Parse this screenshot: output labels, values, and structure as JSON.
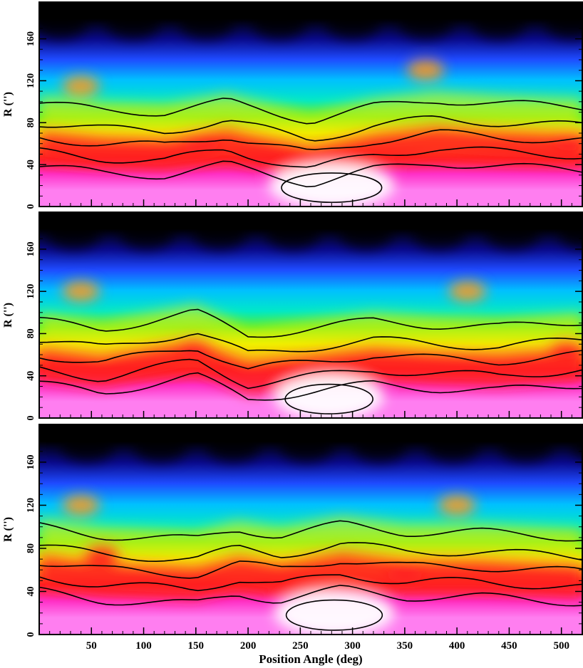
{
  "chart_data": [
    {
      "type": "heatmap",
      "panel": "top",
      "ylabel": "R ('')",
      "xlim": [
        0,
        520
      ],
      "ylim": [
        0,
        195
      ],
      "yticks": [
        "0",
        "40",
        "80",
        "120",
        "160"
      ],
      "show_xticklabels": false,
      "colormap": [
        "#000000",
        "#0a0a8a",
        "#1e4bff",
        "#00c0ff",
        "#00e8c8",
        "#3cf03c",
        "#f0f000",
        "#ff9a14",
        "#ff2020",
        "#ff30c8",
        "#ff7ef0",
        "#ffffff"
      ],
      "features": {
        "arm_band": [
          [
            0,
            58
          ],
          [
            60,
            52
          ],
          [
            120,
            50
          ],
          [
            180,
            60
          ],
          [
            200,
            55
          ],
          [
            260,
            42
          ],
          [
            320,
            55
          ],
          [
            380,
            62
          ],
          [
            440,
            58
          ],
          [
            520,
            55
          ]
        ],
        "white_core_pa": [
          220,
          340
        ],
        "bright_knots": [
          [
            155,
            60
          ],
          [
            510,
            62
          ],
          [
            40,
            115
          ],
          [
            370,
            130
          ]
        ]
      }
    },
    {
      "type": "heatmap",
      "panel": "middle",
      "ylabel": "R ('')",
      "xlim": [
        0,
        520
      ],
      "ylim": [
        0,
        195
      ],
      "yticks": [
        "0",
        "40",
        "80",
        "120",
        "160"
      ],
      "show_xticklabels": false,
      "features": {
        "arm_band": [
          [
            0,
            52
          ],
          [
            60,
            44
          ],
          [
            150,
            60
          ],
          [
            200,
            38
          ],
          [
            260,
            45
          ],
          [
            320,
            52
          ],
          [
            380,
            48
          ],
          [
            440,
            46
          ],
          [
            520,
            52
          ]
        ],
        "white_core_pa": [
          225,
          330
        ],
        "bright_knots": [
          [
            150,
            65
          ],
          [
            505,
            65
          ],
          [
            40,
            120
          ],
          [
            410,
            120
          ]
        ]
      }
    },
    {
      "type": "heatmap",
      "panel": "bottom",
      "ylabel": "R ('')",
      "xlabel": "Position Angle (deg)",
      "xlim": [
        0,
        520
      ],
      "ylim": [
        0,
        195
      ],
      "xticks": [
        "50",
        "100",
        "150",
        "200",
        "250",
        "300",
        "350",
        "400",
        "450",
        "500"
      ],
      "yticks": [
        "0",
        "40",
        "80",
        "120",
        "160"
      ],
      "show_xticklabels": true,
      "features": {
        "arm_band": [
          [
            0,
            60
          ],
          [
            60,
            52
          ],
          [
            150,
            48
          ],
          [
            190,
            58
          ],
          [
            230,
            52
          ],
          [
            290,
            62
          ],
          [
            350,
            55
          ],
          [
            420,
            55
          ],
          [
            520,
            50
          ]
        ],
        "white_core_pa": [
          225,
          340
        ],
        "bright_knots": [
          [
            350,
            55
          ],
          [
            60,
            75
          ],
          [
            40,
            120
          ],
          [
            400,
            120
          ]
        ]
      }
    }
  ]
}
